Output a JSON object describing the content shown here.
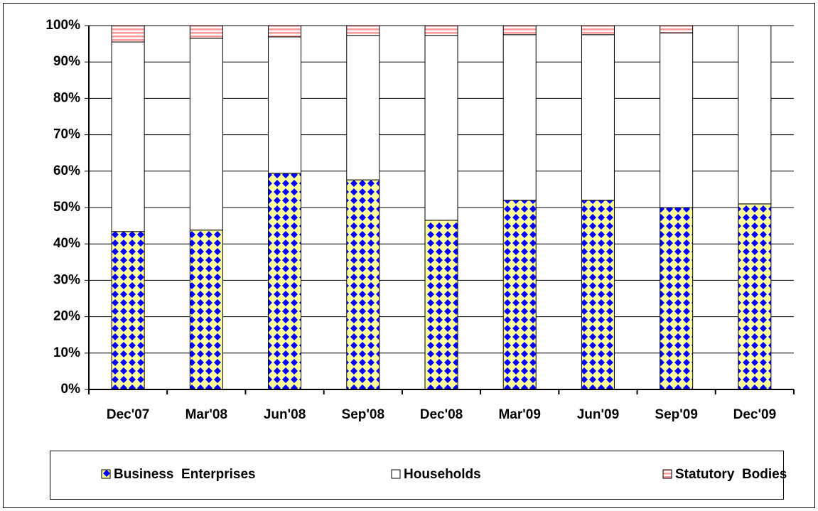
{
  "chart_data": {
    "type": "stacked-bar",
    "categories": [
      "Dec'07",
      "Mar'08",
      "Jun'08",
      "Sep'08",
      "Dec'08",
      "Mar'09",
      "Jun'09",
      "Sep'09",
      "Dec'09"
    ],
    "series": [
      {
        "name": "Business  Enterprises",
        "color": "#0000ff",
        "values": [
          43.4,
          43.8,
          59.4,
          57.6,
          46.5,
          52.0,
          52.0,
          50.0,
          51.0
        ]
      },
      {
        "name": "Households",
        "color": "#ffffff",
        "values": [
          52.1,
          52.7,
          37.5,
          39.7,
          50.8,
          45.5,
          45.5,
          48.0,
          49.0
        ]
      },
      {
        "name": "Statutory  Bodies",
        "color": "#ff9999",
        "values": [
          4.5,
          3.5,
          3.1,
          2.7,
          2.7,
          2.5,
          2.5,
          2.0,
          0
        ]
      }
    ],
    "ylim": [
      0,
      100
    ],
    "yticks": [
      {
        "value": 0,
        "label": "0%"
      },
      {
        "value": 10,
        "label": "10%"
      },
      {
        "value": 20,
        "label": "20%"
      },
      {
        "value": 30,
        "label": "30%"
      },
      {
        "value": 40,
        "label": "40%"
      },
      {
        "value": 50,
        "label": "50%"
      },
      {
        "value": 60,
        "label": "60%"
      },
      {
        "value": 70,
        "label": "70%"
      },
      {
        "value": 80,
        "label": "80%"
      },
      {
        "value": 90,
        "label": "90%"
      },
      {
        "value": 100,
        "label": "100%"
      }
    ],
    "grid": true
  }
}
